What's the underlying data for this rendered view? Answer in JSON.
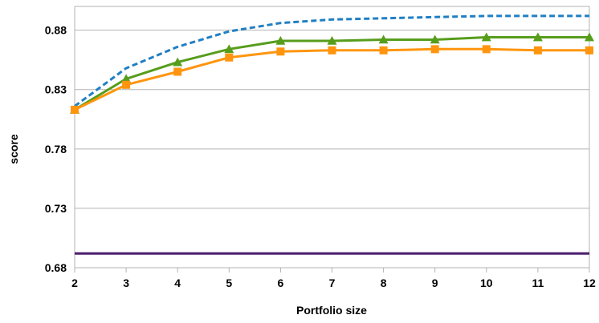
{
  "chart_data": {
    "type": "line",
    "title": "",
    "xlabel": "Portfolio size",
    "ylabel": "score",
    "x": [
      2,
      3,
      4,
      5,
      6,
      7,
      8,
      9,
      10,
      11,
      12
    ],
    "xlim": [
      2,
      12
    ],
    "ylim": [
      0.68,
      0.9
    ],
    "yticks": [
      "0.68",
      "0.73",
      "0.78",
      "0.83",
      "0.88"
    ],
    "xticks": [
      "2",
      "3",
      "4",
      "5",
      "6",
      "7",
      "8",
      "9",
      "10",
      "11",
      "12"
    ],
    "grid": "horizontal",
    "legend": "none",
    "series": [
      {
        "color": "#1f7fc4",
        "style": "dashed",
        "marker": "none",
        "values": [
          0.816,
          0.848,
          0.866,
          0.879,
          0.886,
          0.889,
          0.89,
          0.891,
          0.892,
          0.892,
          0.892
        ]
      },
      {
        "color": "#579d1c",
        "style": "solid",
        "marker": "triangle",
        "values": [
          0.813,
          0.839,
          0.853,
          0.864,
          0.871,
          0.871,
          0.872,
          0.872,
          0.874,
          0.874,
          0.874
        ]
      },
      {
        "color": "#ff950e",
        "style": "solid",
        "marker": "square",
        "values": [
          0.813,
          0.834,
          0.845,
          0.857,
          0.862,
          0.863,
          0.863,
          0.864,
          0.864,
          0.863,
          0.863
        ]
      },
      {
        "color": "#4b1f6f",
        "style": "solid",
        "marker": "none",
        "values": [
          0.692,
          0.692,
          0.692,
          0.692,
          0.692,
          0.692,
          0.692,
          0.692,
          0.692,
          0.692,
          0.692
        ]
      }
    ]
  }
}
